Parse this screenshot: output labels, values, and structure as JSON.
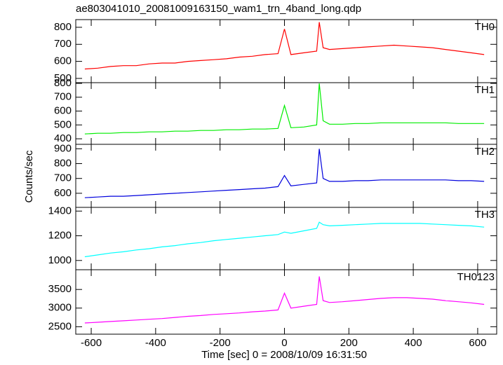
{
  "chart_data": {
    "type": "line",
    "title": "ae803041010_20081009163150_wam1_trn_4band_long.qdp",
    "x_label": "Time [sec] 0 = 2008/10/09 16:31:50",
    "y_label": "Counts/sec",
    "xlim": [
      -648,
      659
    ],
    "xticks": [
      -600,
      -400,
      -200,
      0,
      200,
      400,
      600
    ],
    "x": [
      -620,
      -580,
      -540,
      -500,
      -460,
      -420,
      -380,
      -340,
      -300,
      -260,
      -220,
      -180,
      -140,
      -100,
      -60,
      -20,
      0,
      20,
      60,
      100,
      108,
      120,
      140,
      180,
      220,
      260,
      300,
      340,
      380,
      420,
      460,
      500,
      540,
      580,
      620
    ],
    "series": [
      {
        "name": "TH0",
        "color": "#ff0000",
        "ylim": [
          475,
          845
        ],
        "yticks": [
          500,
          600,
          700,
          800
        ],
        "values": [
          555,
          560,
          570,
          575,
          575,
          585,
          590,
          590,
          600,
          605,
          610,
          615,
          625,
          630,
          640,
          645,
          790,
          640,
          650,
          660,
          830,
          680,
          670,
          675,
          680,
          685,
          690,
          695,
          690,
          685,
          680,
          670,
          660,
          650,
          640
        ]
      },
      {
        "name": "TH1",
        "color": "#00ee00",
        "ylim": [
          360,
          805
        ],
        "yticks": [
          400,
          500,
          600,
          700,
          800
        ],
        "values": [
          435,
          440,
          440,
          445,
          445,
          450,
          450,
          455,
          455,
          460,
          460,
          465,
          465,
          470,
          470,
          475,
          640,
          480,
          485,
          500,
          800,
          530,
          505,
          505,
          510,
          510,
          515,
          515,
          515,
          515,
          515,
          515,
          510,
          510,
          510
        ]
      },
      {
        "name": "TH2",
        "color": "#0000dd",
        "ylim": [
          505,
          930
        ],
        "yticks": [
          600,
          700,
          800,
          900
        ],
        "values": [
          570,
          575,
          580,
          580,
          585,
          590,
          595,
          600,
          605,
          610,
          615,
          620,
          625,
          630,
          635,
          645,
          720,
          650,
          660,
          670,
          900,
          700,
          680,
          680,
          685,
          685,
          690,
          690,
          690,
          690,
          690,
          690,
          685,
          685,
          680
        ]
      },
      {
        "name": "TH3",
        "color": "#00ffff",
        "ylim": [
          925,
          1430
        ],
        "yticks": [
          1000,
          1200,
          1400
        ],
        "values": [
          1030,
          1045,
          1060,
          1070,
          1085,
          1095,
          1110,
          1120,
          1135,
          1145,
          1160,
          1170,
          1180,
          1190,
          1200,
          1210,
          1230,
          1220,
          1240,
          1260,
          1310,
          1290,
          1280,
          1285,
          1290,
          1295,
          1300,
          1300,
          1300,
          1300,
          1295,
          1290,
          1285,
          1280,
          1270
        ]
      },
      {
        "name": "TH0123",
        "color": "#ff00ff",
        "ylim": [
          2300,
          4030
        ],
        "yticks": [
          2500,
          3000,
          3500
        ],
        "values": [
          2600,
          2620,
          2640,
          2660,
          2680,
          2700,
          2720,
          2750,
          2780,
          2800,
          2830,
          2850,
          2870,
          2900,
          2920,
          2950,
          3400,
          3000,
          3050,
          3100,
          3850,
          3200,
          3150,
          3170,
          3200,
          3230,
          3260,
          3280,
          3280,
          3260,
          3240,
          3200,
          3170,
          3140,
          3100
        ]
      }
    ]
  }
}
